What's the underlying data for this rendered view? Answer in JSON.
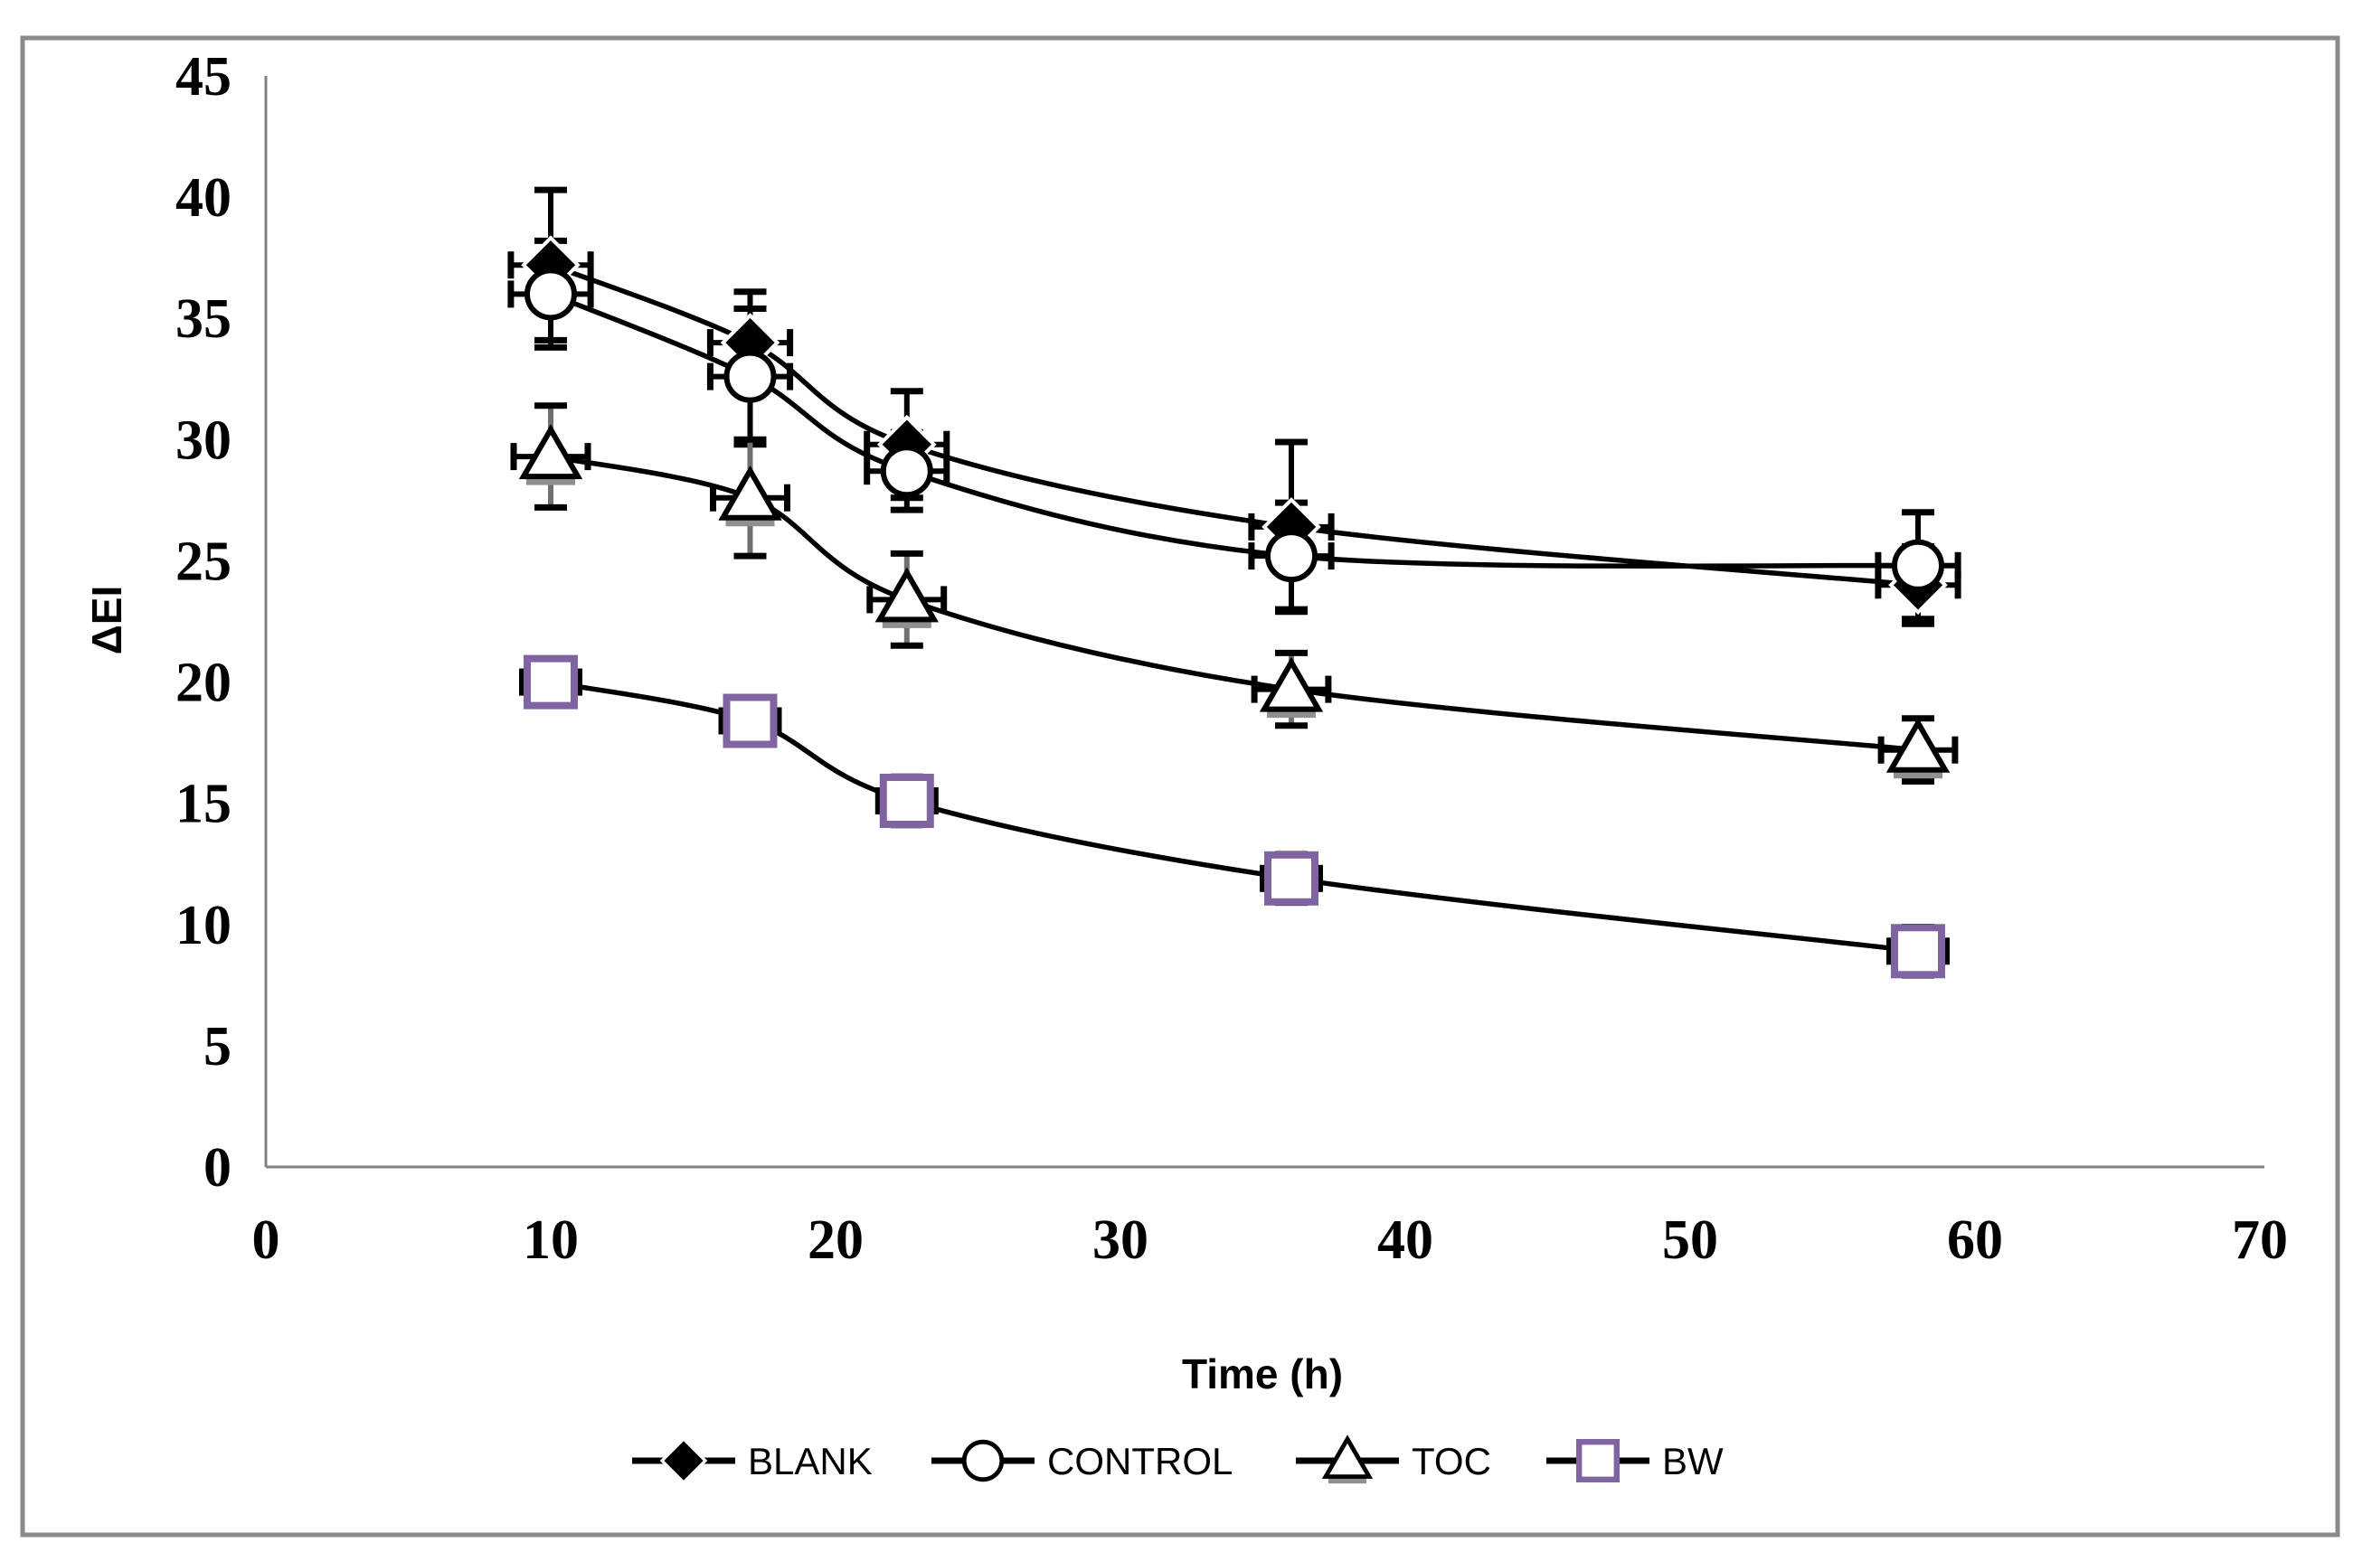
{
  "figure": {
    "background": "#ffffff",
    "border_color": "#8a8a8a",
    "axis_line_color": "#808080",
    "text_color": "#000000"
  },
  "chart_data": {
    "type": "line",
    "title": "",
    "xlabel": "Time (h)",
    "ylabel": "ΔEI",
    "xlim": [
      0,
      70
    ],
    "ylim": [
      0,
      45
    ],
    "x_ticks": [
      0,
      10,
      20,
      30,
      40,
      50,
      60,
      70
    ],
    "y_ticks": [
      0,
      5,
      10,
      15,
      20,
      25,
      30,
      35,
      40,
      45
    ],
    "grid": false,
    "legend_position": "bottom",
    "line_color": "#000000",
    "x": [
      10,
      17,
      22.5,
      36,
      58
    ],
    "series": [
      {
        "name": "BLANK",
        "marker": "diamond",
        "marker_fill": "#000000",
        "marker_stroke": "#000000",
        "err_color": "#000000",
        "values": [
          37.2,
          34.0,
          29.8,
          26.4,
          24.0
        ],
        "y_err": [
          3.1,
          2.1,
          2.2,
          3.5,
          1.6
        ],
        "x_err": 1.4
      },
      {
        "name": "CONTROL",
        "marker": "circle",
        "marker_fill": "#ffffff",
        "marker_stroke": "#000000",
        "err_color": "#000000",
        "values": [
          36.0,
          32.6,
          28.7,
          25.2,
          24.8
        ],
        "y_err": [
          2.2,
          2.8,
          1.6,
          2.2,
          2.2
        ],
        "x_err": 1.4
      },
      {
        "name": "TOC",
        "marker": "triangle",
        "marker_fill": "#ffffff",
        "marker_stroke": "#000000",
        "triangle_base_color": "#8f8f8f",
        "err_color": "#707070",
        "values": [
          29.3,
          27.6,
          23.4,
          19.7,
          17.2
        ],
        "y_err": [
          2.1,
          2.4,
          1.9,
          1.5,
          1.3
        ],
        "x_err": 1.3
      },
      {
        "name": "BW",
        "marker": "square",
        "marker_fill": "#ffffff",
        "marker_stroke": "#8064A2",
        "err_color": "#000000",
        "values": [
          20.0,
          18.4,
          15.1,
          11.9,
          8.9
        ],
        "y_err": [
          0.9,
          0.9,
          1.0,
          1.0,
          1.0
        ],
        "x_err": 1.0
      }
    ]
  }
}
